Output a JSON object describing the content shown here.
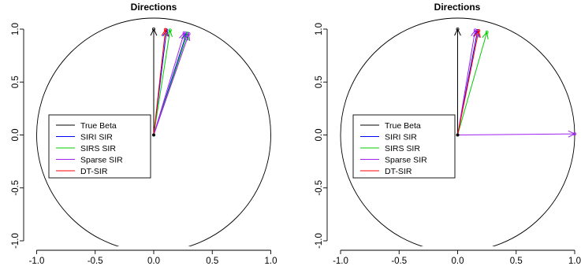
{
  "chart_data": [
    {
      "type": "line",
      "title": "Directions",
      "xlim": [
        -1.0,
        1.0
      ],
      "ylim": [
        -1.0,
        1.0
      ],
      "x_ticks": [
        "-1.0",
        "-0.5",
        "0.0",
        "0.5",
        "1.0"
      ],
      "y_ticks": [
        "-1.0",
        "-0.5",
        "0.0",
        "0.5",
        "1.0"
      ],
      "xtick_values": [
        -1.0,
        -0.5,
        0.0,
        0.5,
        1.0
      ],
      "ytick_values": [
        -1.0,
        -0.5,
        0.0,
        0.5,
        1.0
      ],
      "legend_placement": "left",
      "grid": false,
      "series": [
        {
          "name": "True Beta",
          "color": "#000000",
          "arrows": [
            [
              0.0,
              1.0
            ]
          ]
        },
        {
          "name": "SIRI SIR",
          "color": "#0000ff",
          "arrows": [
            [
              0.28,
              0.96
            ],
            [
              0.11,
              0.99
            ]
          ]
        },
        {
          "name": "SIRS SIR",
          "color": "#00cc00",
          "arrows": [
            [
              0.14,
              0.99
            ],
            [
              0.29,
              0.96
            ]
          ]
        },
        {
          "name": "Sparse SIR",
          "color": "#a020f0",
          "arrows": [
            [
              0.26,
              0.965
            ],
            [
              0.3,
              0.955
            ]
          ]
        },
        {
          "name": "DT-SIR",
          "color": "#ff0000",
          "arrows": [
            [
              0.1,
              0.995
            ]
          ]
        }
      ]
    },
    {
      "type": "line",
      "title": "Directions",
      "xlim": [
        -1.0,
        1.0
      ],
      "ylim": [
        -1.0,
        1.0
      ],
      "x_ticks": [
        "-1.0",
        "-0.5",
        "0.0",
        "0.5",
        "1.0"
      ],
      "y_ticks": [
        "-1.0",
        "-0.5",
        "0.0",
        "0.5",
        "1.0"
      ],
      "xtick_values": [
        -1.0,
        -0.5,
        0.0,
        0.5,
        1.0
      ],
      "ytick_values": [
        -1.0,
        -0.5,
        0.0,
        0.5,
        1.0
      ],
      "legend_placement": "left",
      "grid": false,
      "series": [
        {
          "name": "True Beta",
          "color": "#000000",
          "arrows": [
            [
              0.0,
              1.0
            ]
          ]
        },
        {
          "name": "SIRI SIR",
          "color": "#0000ff",
          "arrows": [
            [
              0.17,
              0.985
            ]
          ]
        },
        {
          "name": "SIRS SIR",
          "color": "#00cc00",
          "arrows": [
            [
              0.25,
              0.97
            ]
          ]
        },
        {
          "name": "Sparse SIR",
          "color": "#a020f0",
          "arrows": [
            [
              1.0,
              0.01
            ],
            [
              0.15,
              0.99
            ]
          ]
        },
        {
          "name": "DT-SIR",
          "color": "#ff0000",
          "arrows": [
            [
              0.18,
              0.985
            ]
          ]
        }
      ]
    }
  ]
}
